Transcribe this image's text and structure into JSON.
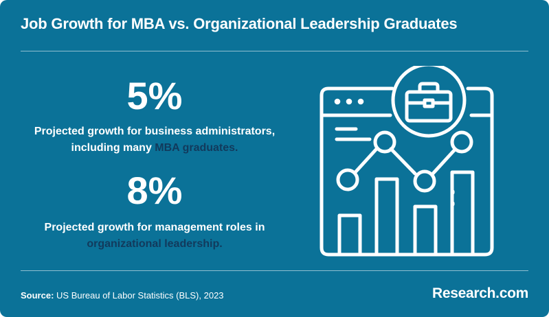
{
  "title": "Job Growth for MBA vs. Organizational Leadership Graduates",
  "stats": [
    {
      "value": "5%",
      "desc_line1": "Projected growth for business administrators,",
      "desc_line2_pre": "including many ",
      "desc_line2_highlight": "MBA graduates."
    },
    {
      "value": "8%",
      "desc_line1": "Projected growth for management roles in",
      "desc_line2_pre": "",
      "desc_line2_highlight": "organizational leadership."
    }
  ],
  "illustration": {
    "icons": [
      "browser-window-icon",
      "briefcase-icon",
      "bar-chart-icon",
      "line-trend-icon"
    ]
  },
  "footer": {
    "source_label": "Source:",
    "source_text": " US Bureau of Labor Statistics (BLS), 2023",
    "brand": "Research.com"
  },
  "colors": {
    "background": "#0b7298",
    "text": "#ffffff",
    "highlight": "#123a5c"
  }
}
